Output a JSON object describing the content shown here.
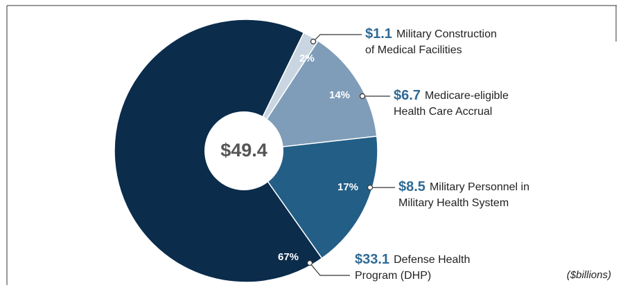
{
  "chart_data": {
    "type": "pie",
    "center_label": "$49.4",
    "note": "($billions)",
    "categories": [
      [
        "Military Construction",
        "of Medical Facilities"
      ],
      [
        "Medicare-eligible",
        "Health Care Accrual"
      ],
      [
        "Military Personnel in",
        "Military Health System"
      ],
      [
        "Defense Health",
        "Program (DHP)"
      ]
    ],
    "values": [
      2,
      14,
      17,
      67
    ],
    "value_labels": [
      "2%",
      "14%",
      "17%",
      "67%"
    ],
    "amount_labels": [
      "$1.1",
      "$6.7",
      "$8.5",
      "$33.1"
    ],
    "colors": [
      "#c9d6e1",
      "#7f9db9",
      "#235e86",
      "#0b2c4b"
    ]
  }
}
